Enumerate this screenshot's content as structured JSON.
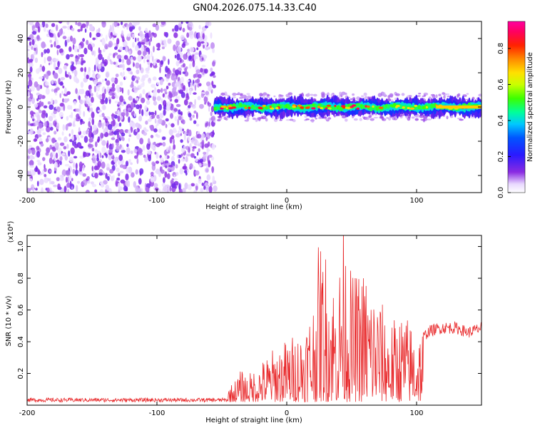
{
  "title": "GN04.2026.075.14.33.C40",
  "chart_data": [
    {
      "type": "heatmap",
      "name": "spectrogram",
      "xlabel": "Height of straight line (km)",
      "ylabel": "Frequency (Hz)",
      "xlim": [
        -200,
        150
      ],
      "ylim": [
        -50,
        50
      ],
      "xticks": [
        -200,
        -100,
        0,
        100
      ],
      "yticks": [
        -40,
        -20,
        0,
        20,
        40
      ],
      "colorbar": {
        "label": "Normalized spectral amplitude",
        "range": [
          0,
          0.95
        ],
        "ticks": [
          0.0,
          0.2,
          0.4,
          0.6,
          0.8
        ],
        "tick_labels": [
          "0.0",
          "0.2",
          "0.4",
          "0.6",
          "0.8"
        ]
      },
      "regions": [
        {
          "description": "broadband noise",
          "x_range": [
            -200,
            -55
          ],
          "freq_range": [
            -50,
            50
          ],
          "amplitude": [
            0.0,
            0.15
          ]
        },
        {
          "description": "signal band",
          "x_range": [
            -55,
            150
          ],
          "freq_center": 0,
          "freq_halfwidth": 5,
          "amplitude": [
            0.1,
            0.95
          ]
        }
      ]
    },
    {
      "type": "line",
      "name": "snr",
      "xlabel": "Height of straight line (km)",
      "ylabel": "SNR (10 * v/v)",
      "y_multiplier": "(x10⁴)",
      "xlim": [
        -200,
        150
      ],
      "ylim": [
        0,
        1.07
      ],
      "xticks": [
        -200,
        -100,
        0,
        100
      ],
      "yticks": [
        0.2,
        0.4,
        0.6,
        0.8,
        1.0
      ],
      "ytick_labels": [
        "0.2",
        "0.4",
        "0.6",
        "0.8",
        "1.0"
      ],
      "color": "#e8282a",
      "series": [
        {
          "name": "SNR",
          "x": [
            -200,
            -150,
            -100,
            -60,
            -50,
            -45,
            -40,
            -35,
            -30,
            -20,
            -10,
            0,
            10,
            20,
            25,
            30,
            40,
            42,
            50,
            60,
            70,
            80,
            90,
            100,
            110,
            120,
            130,
            140,
            150
          ],
          "y": [
            0.03,
            0.03,
            0.03,
            0.03,
            0.03,
            0.08,
            0.12,
            0.18,
            0.15,
            0.22,
            0.3,
            0.35,
            0.4,
            0.55,
            0.9,
            0.85,
            0.6,
            1.07,
            0.7,
            0.75,
            0.6,
            0.45,
            0.5,
            0.4,
            0.48,
            0.5,
            0.5,
            0.47,
            0.5
          ]
        }
      ]
    }
  ]
}
